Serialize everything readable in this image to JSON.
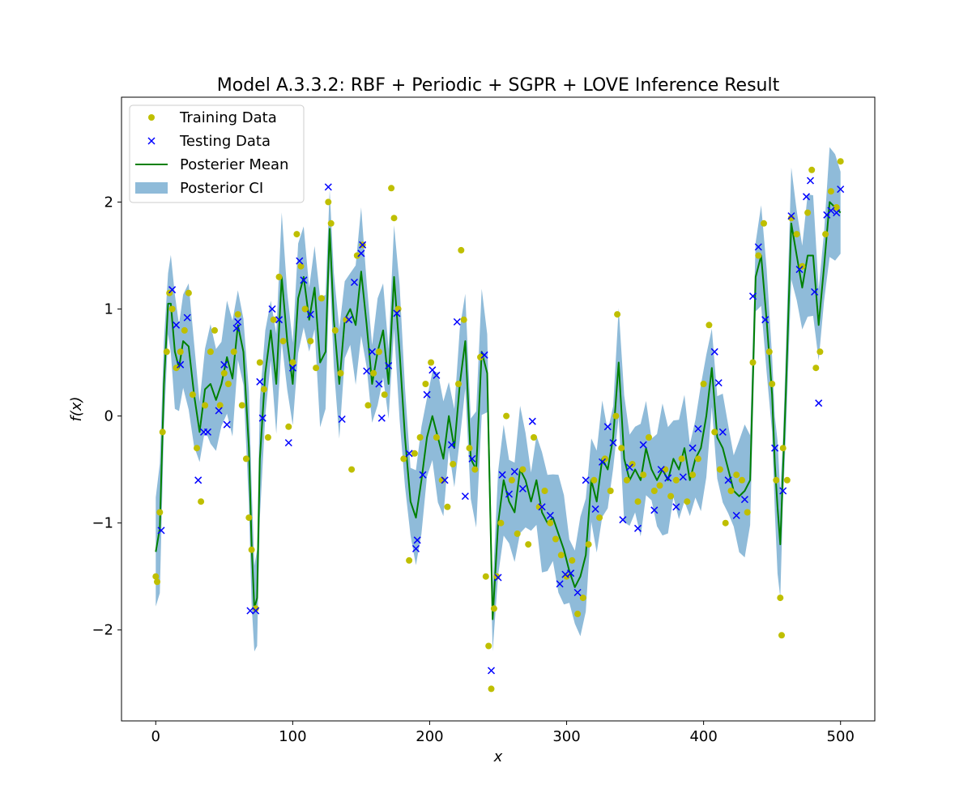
{
  "chart_data": {
    "type": "line",
    "title": "Model A.3.3.2: RBF + Periodic + SGPR + LOVE Inference Result",
    "xlabel": "x",
    "ylabel": "f(x)",
    "xlim": [
      -25,
      525
    ],
    "ylim": [
      -2.85,
      2.98
    ],
    "xticks": [
      0,
      100,
      200,
      300,
      400,
      500
    ],
    "yticks": [
      -2,
      -1,
      0,
      1,
      2
    ],
    "legend_position": "upper left",
    "colors": {
      "training": "#bfbf00",
      "testing": "#0000ff",
      "mean": "#008000",
      "ci": "#1f77b4"
    },
    "legend": [
      {
        "label": "Training Data",
        "kind": "dot"
      },
      {
        "label": "Testing Data",
        "kind": "cross"
      },
      {
        "label": "Posterier Mean",
        "kind": "line"
      },
      {
        "label": "Posterior CI",
        "kind": "patch"
      }
    ],
    "mean": {
      "x": [
        0,
        3,
        6,
        9,
        11,
        14,
        17,
        20,
        24,
        28,
        32,
        36,
        40,
        44,
        48,
        52,
        56,
        60,
        64,
        68,
        70,
        72,
        74,
        76,
        80,
        84,
        88,
        92,
        96,
        100,
        104,
        108,
        112,
        116,
        120,
        124,
        127,
        130,
        134,
        138,
        142,
        146,
        150,
        154,
        158,
        162,
        166,
        170,
        174,
        178,
        182,
        186,
        190,
        194,
        198,
        202,
        206,
        210,
        214,
        218,
        222,
        226,
        230,
        234,
        238,
        242,
        246,
        250,
        254,
        258,
        262,
        266,
        270,
        274,
        278,
        282,
        286,
        290,
        294,
        298,
        302,
        306,
        310,
        314,
        318,
        322,
        326,
        330,
        334,
        338,
        342,
        346,
        350,
        354,
        358,
        362,
        366,
        370,
        374,
        378,
        382,
        386,
        390,
        394,
        398,
        402,
        406,
        410,
        414,
        418,
        422,
        426,
        430,
        434,
        438,
        442,
        446,
        450,
        452,
        454,
        456,
        458,
        460,
        464,
        468,
        472,
        476,
        480,
        484,
        488,
        492,
        496,
        500
      ],
      "y": [
        -1.27,
        -1.05,
        0.3,
        1.05,
        1.05,
        0.6,
        0.45,
        0.7,
        0.65,
        0.2,
        -0.15,
        0.25,
        0.3,
        0.15,
        0.3,
        0.55,
        0.35,
        0.85,
        0.6,
        -0.3,
        -1.2,
        -1.8,
        -1.7,
        -0.4,
        0.4,
        0.8,
        0.3,
        1.3,
        0.7,
        0.3,
        1.1,
        1.3,
        0.9,
        1.2,
        0.5,
        0.6,
        1.75,
        0.9,
        0.3,
        0.9,
        1.0,
        0.85,
        1.35,
        0.85,
        0.3,
        0.6,
        0.8,
        0.3,
        1.3,
        0.6,
        -0.2,
        -0.8,
        -0.95,
        -0.6,
        -0.2,
        0.0,
        -0.2,
        -0.4,
        0.0,
        -0.3,
        0.3,
        0.7,
        -0.4,
        -0.5,
        0.6,
        0.4,
        -1.9,
        -1.0,
        -0.6,
        -0.8,
        -0.9,
        -0.5,
        -0.6,
        -0.8,
        -0.6,
        -0.9,
        -1.0,
        -0.95,
        -1.1,
        -1.25,
        -1.45,
        -1.6,
        -1.5,
        -1.3,
        -0.6,
        -0.8,
        -0.4,
        -0.5,
        -0.2,
        0.5,
        -0.4,
        -0.6,
        -0.5,
        -0.6,
        -0.3,
        -0.5,
        -0.6,
        -0.5,
        -0.6,
        -0.4,
        -0.5,
        -0.3,
        -0.6,
        -0.4,
        -0.3,
        0.0,
        0.45,
        -0.2,
        -0.3,
        -0.5,
        -0.7,
        -0.75,
        -0.7,
        -0.6,
        1.3,
        1.5,
        0.9,
        0.2,
        -0.45,
        -0.85,
        -1.2,
        -0.5,
        0.2,
        1.8,
        1.5,
        1.2,
        1.5,
        1.5,
        0.85,
        1.4,
        2.0,
        1.95,
        1.9
      ]
    },
    "ci_half_width": 0.45,
    "training": {
      "x": [
        0,
        1,
        3,
        5,
        8,
        10,
        12,
        15,
        18,
        21,
        24,
        27,
        30,
        33,
        36,
        40,
        43,
        47,
        50,
        53,
        57,
        60,
        63,
        66,
        68,
        70,
        73,
        76,
        79,
        82,
        86,
        90,
        93,
        97,
        100,
        103,
        106,
        109,
        113,
        117,
        121,
        126,
        128,
        131,
        135,
        139,
        143,
        147,
        151,
        155,
        159,
        163,
        167,
        172,
        174,
        177,
        181,
        185,
        189,
        193,
        197,
        201,
        205,
        209,
        213,
        217,
        221,
        223,
        225,
        229,
        233,
        237,
        241,
        243,
        245,
        247,
        249,
        252,
        256,
        260,
        264,
        268,
        272,
        276,
        280,
        284,
        288,
        292,
        296,
        300,
        304,
        308,
        312,
        316,
        320,
        324,
        328,
        332,
        336,
        337,
        340,
        344,
        348,
        352,
        356,
        360,
        364,
        368,
        372,
        376,
        380,
        384,
        388,
        392,
        396,
        400,
        404,
        408,
        412,
        416,
        420,
        424,
        428,
        432,
        436,
        440,
        444,
        448,
        450,
        453,
        456,
        457,
        458,
        461,
        464,
        468,
        472,
        476,
        479,
        482,
        485,
        489,
        493,
        497,
        500
      ],
      "y": [
        -1.5,
        -1.55,
        -0.9,
        -0.15,
        0.6,
        1.15,
        1.0,
        0.45,
        0.6,
        0.8,
        1.15,
        0.2,
        -0.3,
        -0.8,
        0.1,
        0.6,
        0.8,
        0.1,
        0.4,
        0.3,
        0.6,
        0.95,
        0.1,
        -0.4,
        -0.95,
        -1.25,
        -1.8,
        0.5,
        0.25,
        -0.2,
        0.9,
        1.3,
        0.7,
        -0.1,
        0.5,
        1.7,
        1.4,
        1.0,
        0.7,
        0.45,
        1.1,
        2.0,
        1.8,
        0.8,
        0.4,
        0.9,
        -0.5,
        1.5,
        1.6,
        0.1,
        0.4,
        0.6,
        0.2,
        2.13,
        1.85,
        1.0,
        -0.4,
        -1.35,
        -0.35,
        -0.2,
        0.3,
        0.5,
        -0.2,
        -0.6,
        -0.85,
        -0.45,
        0.3,
        1.55,
        0.9,
        -0.3,
        -0.5,
        0.55,
        -1.5,
        -2.15,
        -2.55,
        -1.8,
        -1.5,
        -1.0,
        0.0,
        -0.6,
        -1.1,
        -0.5,
        -1.2,
        -0.2,
        -0.85,
        -0.7,
        -1.0,
        -1.15,
        -1.3,
        -1.5,
        -1.35,
        -1.85,
        -1.7,
        -1.2,
        -0.6,
        -0.95,
        -0.4,
        -0.7,
        0.0,
        0.95,
        -0.3,
        -0.6,
        -0.45,
        -0.8,
        -0.55,
        -0.2,
        -0.7,
        -0.65,
        -0.5,
        -0.75,
        -0.6,
        -0.4,
        -0.8,
        -0.55,
        -0.4,
        0.3,
        0.85,
        -0.15,
        -0.5,
        -1.0,
        -0.7,
        -0.55,
        -0.6,
        -0.9,
        0.5,
        1.5,
        1.8,
        0.6,
        0.3,
        -0.6,
        -1.7,
        -2.05,
        -0.3,
        -0.6,
        1.85,
        1.7,
        1.4,
        1.9,
        2.3,
        0.45,
        0.6,
        1.7,
        2.1,
        1.95,
        2.38
      ]
    },
    "testing": {
      "x": [
        4,
        12,
        15,
        18,
        23,
        31,
        35,
        38,
        46,
        50,
        52,
        59,
        60,
        69,
        73,
        76,
        78,
        85,
        90,
        97,
        100,
        105,
        108,
        113,
        126,
        136,
        141,
        145,
        150,
        151,
        154,
        158,
        163,
        165,
        170,
        176,
        185,
        190,
        191,
        195,
        198,
        202,
        205,
        211,
        216,
        220,
        226,
        231,
        240,
        245,
        250,
        253,
        258,
        262,
        268,
        275,
        282,
        288,
        295,
        299,
        303,
        308,
        314,
        321,
        326,
        330,
        334,
        341,
        346,
        352,
        356,
        364,
        369,
        374,
        380,
        385,
        392,
        396,
        408,
        411,
        414,
        418,
        424,
        430,
        436,
        440,
        445,
        452,
        458,
        464,
        470,
        475,
        478,
        481,
        484,
        490,
        493,
        497,
        500
      ],
      "y": [
        -1.07,
        1.18,
        0.85,
        0.48,
        0.92,
        -0.6,
        -0.15,
        -0.15,
        0.05,
        0.48,
        -0.08,
        0.82,
        0.88,
        -1.82,
        -1.82,
        0.32,
        -0.02,
        1.0,
        0.9,
        -0.25,
        0.45,
        1.45,
        1.27,
        0.95,
        2.14,
        -0.03,
        0.9,
        1.25,
        1.52,
        1.6,
        0.42,
        0.6,
        0.3,
        -0.02,
        0.47,
        0.96,
        -0.35,
        -1.24,
        -1.16,
        -0.55,
        0.2,
        0.43,
        0.38,
        -0.6,
        -0.27,
        0.88,
        -0.75,
        -0.4,
        0.57,
        -2.38,
        -1.51,
        -0.55,
        -0.73,
        -0.52,
        -0.68,
        -0.05,
        -0.85,
        -0.93,
        -1.57,
        -1.48,
        -1.47,
        -1.65,
        -0.6,
        -0.87,
        -0.43,
        -0.1,
        -0.25,
        -0.97,
        -0.48,
        -1.05,
        -0.27,
        -0.88,
        -0.5,
        -0.58,
        -0.85,
        -0.57,
        -0.3,
        -0.12,
        0.6,
        0.31,
        -0.15,
        -0.6,
        -0.93,
        -0.78,
        1.12,
        1.58,
        0.9,
        -0.3,
        -0.7,
        1.87,
        1.37,
        2.05,
        2.2,
        1.16,
        0.12,
        1.88,
        1.92,
        1.9,
        2.12
      ]
    }
  }
}
